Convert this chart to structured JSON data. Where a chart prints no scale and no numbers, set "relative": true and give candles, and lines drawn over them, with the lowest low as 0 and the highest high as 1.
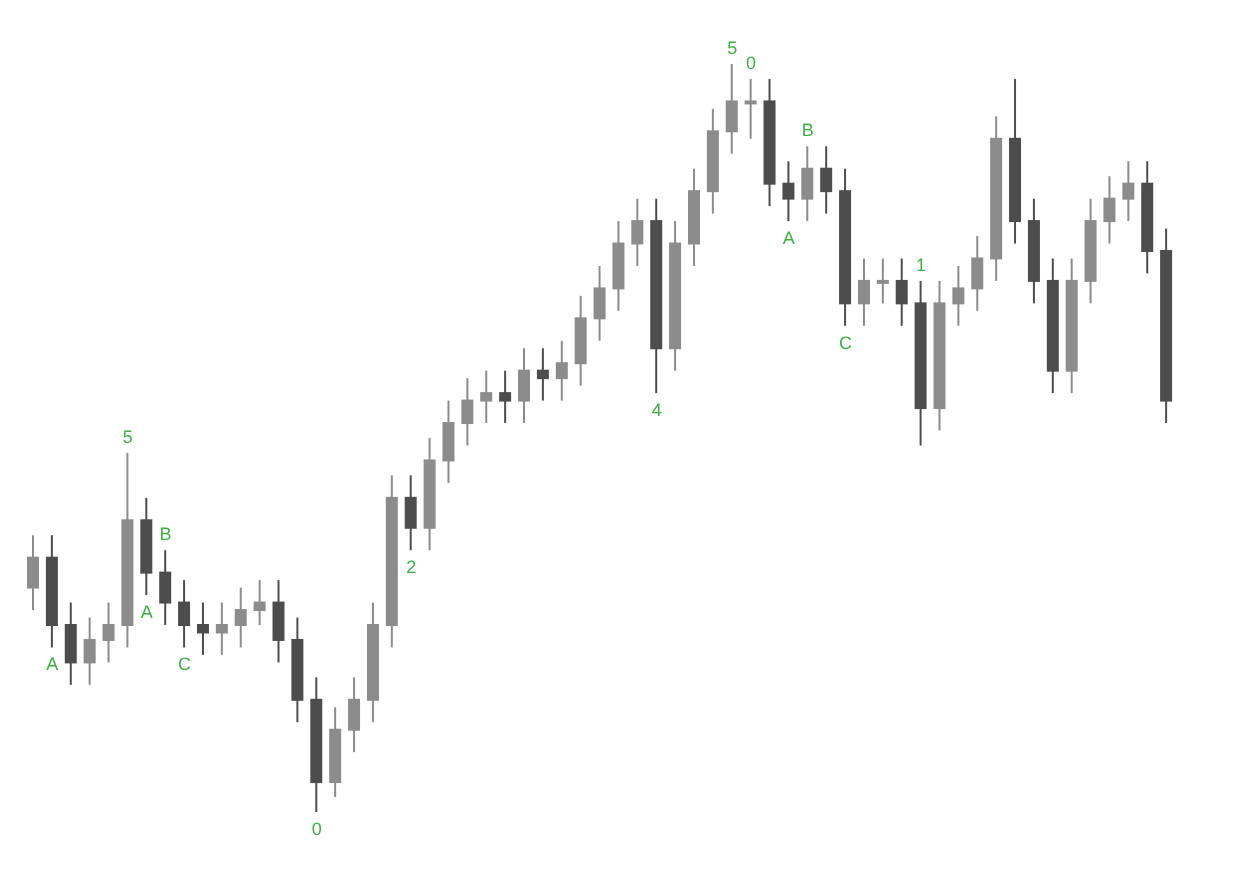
{
  "chart_data": {
    "type": "candlestick",
    "relative": true,
    "tick_labels": false,
    "grid": false,
    "colors": [
      "#8c8c8c",
      "#4d4d4d",
      "#4d4d4d",
      "#8c8c8c",
      "#8c8c8c",
      "#8c8c8c",
      "#4d4d4d",
      "#4d4d4d",
      "#4d4d4d",
      "#4d4d4d",
      "#8c8c8c",
      "#8c8c8c",
      "#8c8c8c",
      "#4d4d4d",
      "#4d4d4d",
      "#4d4d4d",
      "#8c8c8c",
      "#8c8c8c",
      "#8c8c8c",
      "#8c8c8c",
      "#4d4d4d",
      "#8c8c8c",
      "#8c8c8c",
      "#8c8c8c",
      "#8c8c8c",
      "#4d4d4d",
      "#8c8c8c",
      "#4d4d4d",
      "#8c8c8c",
      "#8c8c8c",
      "#8c8c8c",
      "#8c8c8c",
      "#8c8c8c",
      "#4d4d4d",
      "#8c8c8c",
      "#8c8c8c",
      "#8c8c8c",
      "#8c8c8c",
      "#8c8c8c",
      "#4d4d4d",
      "#4d4d4d",
      "#8c8c8c",
      "#4d4d4d",
      "#4d4d4d",
      "#8c8c8c",
      "#8c8c8c",
      "#4d4d4d",
      "#4d4d4d",
      "#8c8c8c",
      "#8c8c8c",
      "#8c8c8c",
      "#8c8c8c",
      "#4d4d4d",
      "#4d4d4d",
      "#4d4d4d",
      "#8c8c8c",
      "#8c8c8c",
      "#8c8c8c",
      "#8c8c8c",
      "#4d4d4d",
      "#4d4d4d"
    ],
    "categories": [
      null,
      null,
      null,
      null,
      null,
      null,
      null,
      null,
      null,
      null,
      null,
      null,
      null,
      null,
      null,
      null,
      null,
      null,
      null,
      null,
      null,
      null,
      null,
      null,
      null,
      null,
      null,
      null,
      null,
      null,
      null,
      null,
      null,
      null,
      null,
      null,
      null,
      null,
      null,
      null,
      null,
      null,
      null,
      null,
      null,
      null,
      null,
      null,
      null,
      null,
      null,
      null,
      null,
      null,
      null,
      null,
      null,
      null,
      null,
      null,
      null
    ],
    "ohlc": [
      [
        0.3,
        0.37,
        0.27,
        0.34
      ],
      [
        0.34,
        0.37,
        0.22,
        0.25
      ],
      [
        0.25,
        0.28,
        0.17,
        0.2
      ],
      [
        0.2,
        0.26,
        0.17,
        0.23
      ],
      [
        0.23,
        0.28,
        0.2,
        0.25
      ],
      [
        0.25,
        0.48,
        0.22,
        0.39
      ],
      [
        0.39,
        0.42,
        0.29,
        0.32
      ],
      [
        0.32,
        0.35,
        0.25,
        0.28
      ],
      [
        0.28,
        0.31,
        0.22,
        0.25
      ],
      [
        0.25,
        0.28,
        0.21,
        0.24
      ],
      [
        0.24,
        0.28,
        0.21,
        0.25
      ],
      [
        0.25,
        0.3,
        0.22,
        0.27
      ],
      [
        0.27,
        0.31,
        0.25,
        0.28
      ],
      [
        0.28,
        0.31,
        0.2,
        0.23
      ],
      [
        0.23,
        0.26,
        0.12,
        0.15
      ],
      [
        0.15,
        0.18,
        0,
        0.04
      ],
      [
        0.04,
        0.14,
        0.02,
        0.11
      ],
      [
        0.11,
        0.18,
        0.08,
        0.15
      ],
      [
        0.15,
        0.28,
        0.12,
        0.25
      ],
      [
        0.25,
        0.45,
        0.22,
        0.42
      ],
      [
        0.42,
        0.45,
        0.35,
        0.38
      ],
      [
        0.38,
        0.5,
        0.35,
        0.47
      ],
      [
        0.47,
        0.55,
        0.44,
        0.52
      ],
      [
        0.52,
        0.58,
        0.49,
        0.55
      ],
      [
        0.55,
        0.59,
        0.52,
        0.56
      ],
      [
        0.56,
        0.59,
        0.52,
        0.55
      ],
      [
        0.55,
        0.62,
        0.52,
        0.59
      ],
      [
        0.59,
        0.62,
        0.55,
        0.58
      ],
      [
        0.58,
        0.63,
        0.55,
        0.6
      ],
      [
        0.6,
        0.69,
        0.57,
        0.66
      ],
      [
        0.66,
        0.73,
        0.63,
        0.7
      ],
      [
        0.7,
        0.79,
        0.67,
        0.76
      ],
      [
        0.76,
        0.82,
        0.73,
        0.79
      ],
      [
        0.79,
        0.82,
        0.56,
        0.62
      ],
      [
        0.62,
        0.79,
        0.59,
        0.76
      ],
      [
        0.76,
        0.86,
        0.73,
        0.83
      ],
      [
        0.83,
        0.94,
        0.8,
        0.91
      ],
      [
        0.91,
        1,
        0.88,
        0.95
      ],
      [
        0.95,
        0.98,
        0.9,
        0.95
      ],
      [
        0.95,
        0.98,
        0.81,
        0.84
      ],
      [
        0.84,
        0.87,
        0.79,
        0.82
      ],
      [
        0.82,
        0.89,
        0.79,
        0.86
      ],
      [
        0.86,
        0.89,
        0.8,
        0.83
      ],
      [
        0.83,
        0.86,
        0.65,
        0.68
      ],
      [
        0.68,
        0.74,
        0.65,
        0.71
      ],
      [
        0.71,
        0.74,
        0.68,
        0.71
      ],
      [
        0.71,
        0.74,
        0.65,
        0.68
      ],
      [
        0.68,
        0.71,
        0.49,
        0.54
      ],
      [
        0.54,
        0.71,
        0.51,
        0.68
      ],
      [
        0.68,
        0.73,
        0.65,
        0.7
      ],
      [
        0.7,
        0.77,
        0.67,
        0.74
      ],
      [
        0.74,
        0.93,
        0.71,
        0.9
      ],
      [
        0.9,
        0.98,
        0.76,
        0.79
      ],
      [
        0.79,
        0.82,
        0.68,
        0.71
      ],
      [
        0.71,
        0.74,
        0.56,
        0.59
      ],
      [
        0.59,
        0.74,
        0.56,
        0.71
      ],
      [
        0.71,
        0.82,
        0.68,
        0.79
      ],
      [
        0.79,
        0.85,
        0.76,
        0.82
      ],
      [
        0.82,
        0.87,
        0.79,
        0.84
      ],
      [
        0.84,
        0.87,
        0.72,
        0.75
      ],
      [
        0.75,
        0.78,
        0.52,
        0.55
      ]
    ],
    "annotations": [
      {
        "text": "A",
        "y": 0.22
      },
      {
        "text": "5",
        "y": 0.48
      },
      {
        "text": "A",
        "y": 0.29
      },
      {
        "text": "B",
        "y": 0.35
      },
      {
        "text": "C",
        "y": 0.22
      },
      {
        "text": "0",
        "y": 0
      },
      {
        "text": "2",
        "y": 0.35
      },
      {
        "text": "4",
        "y": 0.56
      },
      {
        "text": "5",
        "y": 1
      },
      {
        "text": "0",
        "y": 0.98
      },
      {
        "text": "A",
        "y": 0.79
      },
      {
        "text": "B",
        "y": 0.89
      },
      {
        "text": "C",
        "y": 0.65
      },
      {
        "text": "1",
        "y": 0.71
      }
    ]
  }
}
